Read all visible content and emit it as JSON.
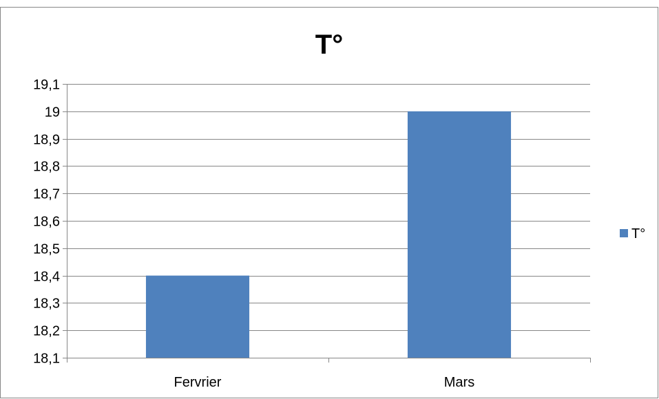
{
  "chart_data": {
    "type": "bar",
    "title": "T°",
    "categories": [
      "Fervrier",
      "Mars"
    ],
    "series": [
      {
        "name": "T°",
        "values": [
          18.4,
          19.0
        ],
        "color": "#4F81BD"
      }
    ],
    "xlabel": "",
    "ylabel": "",
    "ylim": [
      18.1,
      19.1
    ],
    "yticks": [
      18.1,
      18.2,
      18.3,
      18.4,
      18.5,
      18.6,
      18.7,
      18.8,
      18.9,
      19,
      19.1
    ],
    "ytick_labels": [
      "18,1",
      "18,2",
      "18,3",
      "18,4",
      "18,5",
      "18,6",
      "18,7",
      "18,8",
      "18,9",
      "19",
      "19,1"
    ],
    "grid": true,
    "legend": {
      "position": "right",
      "entries": [
        "T°"
      ]
    },
    "colors": {
      "gridline": "#868686",
      "axis": "#868686",
      "border": "#868686"
    }
  }
}
